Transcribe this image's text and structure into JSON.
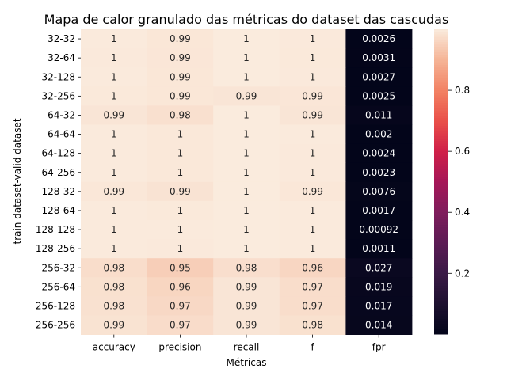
{
  "chart_data": {
    "type": "heatmap",
    "title": "Mapa de calor granulado das métricas do dataset das cascudas",
    "xlabel": "Métricas",
    "ylabel": "train dataset-valid dataset",
    "columns": [
      "accuracy",
      "precision",
      "recall",
      "f",
      "fpr"
    ],
    "rows": [
      "32-32",
      "32-64",
      "32-128",
      "32-256",
      "64-32",
      "64-64",
      "64-128",
      "64-256",
      "128-32",
      "128-64",
      "128-128",
      "128-256",
      "256-32",
      "256-64",
      "256-128",
      "256-256"
    ],
    "values": [
      [
        0.998,
        0.992,
        1.0,
        0.997,
        0.0026
      ],
      [
        0.997,
        0.991,
        1.0,
        0.996,
        0.0031
      ],
      [
        0.998,
        0.992,
        1.0,
        0.997,
        0.0027
      ],
      [
        0.996,
        0.992,
        0.99,
        0.991,
        0.0025
      ],
      [
        0.99,
        0.98,
        1.0,
        0.99,
        0.011
      ],
      [
        0.999,
        0.995,
        1.0,
        0.998,
        0.002
      ],
      [
        0.998,
        0.995,
        1.0,
        0.997,
        0.0024
      ],
      [
        0.998,
        0.995,
        1.0,
        0.997,
        0.0023
      ],
      [
        0.993,
        0.986,
        1.0,
        0.993,
        0.0076
      ],
      [
        0.998,
        0.996,
        1.0,
        0.998,
        0.0017
      ],
      [
        0.999,
        0.998,
        1.0,
        0.999,
        0.00092
      ],
      [
        0.999,
        0.997,
        1.0,
        0.998,
        0.0011
      ],
      [
        0.975,
        0.948,
        0.977,
        0.962,
        0.027
      ],
      [
        0.981,
        0.961,
        0.99,
        0.974,
        0.019
      ],
      [
        0.982,
        0.966,
        0.99,
        0.975,
        0.017
      ],
      [
        0.985,
        0.973,
        0.99,
        0.981,
        0.014
      ]
    ],
    "labels": [
      [
        "1",
        "0.99",
        "1",
        "1",
        "0.0026"
      ],
      [
        "1",
        "0.99",
        "1",
        "1",
        "0.0031"
      ],
      [
        "1",
        "0.99",
        "1",
        "1",
        "0.0027"
      ],
      [
        "1",
        "0.99",
        "0.99",
        "0.99",
        "0.0025"
      ],
      [
        "0.99",
        "0.98",
        "1",
        "0.99",
        "0.011"
      ],
      [
        "1",
        "1",
        "1",
        "1",
        "0.002"
      ],
      [
        "1",
        "1",
        "1",
        "1",
        "0.0024"
      ],
      [
        "1",
        "1",
        "1",
        "1",
        "0.0023"
      ],
      [
        "0.99",
        "0.99",
        "1",
        "0.99",
        "0.0076"
      ],
      [
        "1",
        "1",
        "1",
        "1",
        "0.0017"
      ],
      [
        "1",
        "1",
        "1",
        "1",
        "0.00092"
      ],
      [
        "1",
        "1",
        "1",
        "1",
        "0.0011"
      ],
      [
        "0.98",
        "0.95",
        "0.98",
        "0.96",
        "0.027"
      ],
      [
        "0.98",
        "0.96",
        "0.99",
        "0.97",
        "0.019"
      ],
      [
        "0.98",
        "0.97",
        "0.99",
        "0.97",
        "0.017"
      ],
      [
        "0.99",
        "0.97",
        "0.99",
        "0.98",
        "0.014"
      ]
    ],
    "colorbar": {
      "min": 0.00092,
      "max": 1.0,
      "ticks": [
        0.2,
        0.4,
        0.6,
        0.8
      ],
      "tick_labels": [
        "0.2",
        "0.4",
        "0.6",
        "0.8"
      ],
      "colormap": "rocket"
    },
    "grid": false,
    "legend": "colorbar-right"
  }
}
